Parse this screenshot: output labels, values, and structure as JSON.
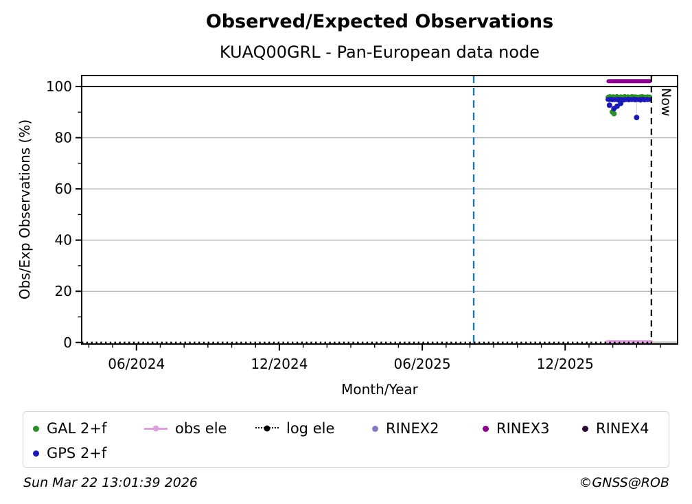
{
  "chart_data": {
    "type": "scatter",
    "title": "Observed/Expected Observations",
    "subtitle": "KUAQ00GRL - Pan-European data node",
    "xlabel": "Month/Year",
    "ylabel": "Obs/Exp Observations (%)",
    "x_unit_note": "x values are months since 2024-01-01, e.g. 5.0 = 01 Jun 2024",
    "xlim": [
      2.7,
      27.72
    ],
    "ylim": [
      -0.6,
      104.3
    ],
    "y_major_ticks": [
      0,
      20,
      40,
      60,
      80,
      100
    ],
    "y_minor_ticks": [
      10,
      30,
      50,
      70,
      90
    ],
    "x_major_ticks": [
      {
        "m": 5,
        "label": "06/2024"
      },
      {
        "m": 11,
        "label": "12/2024"
      },
      {
        "m": 17,
        "label": "06/2025"
      },
      {
        "m": 23,
        "label": "12/2025"
      }
    ],
    "x_minor_tick_months": [
      3,
      4,
      6,
      7,
      8,
      9,
      10,
      12,
      13,
      14,
      15,
      16,
      18,
      19,
      20,
      21,
      22,
      24,
      25,
      26,
      27
    ],
    "grid": {
      "y_values": [
        20,
        40,
        60,
        80
      ],
      "color": "#b5b5b5"
    },
    "reference_line_100": {
      "value": 100,
      "color": "#000000"
    },
    "event_line": {
      "m": 19.16,
      "color": "#1f77b4",
      "style": "dashed"
    },
    "now_line": {
      "m": 26.62,
      "label": "Now",
      "color": "#000000",
      "style": "dashed"
    },
    "series": [
      {
        "name": "GAL 2+f",
        "color": "#2e8b2e",
        "kind": "scatter",
        "band": {
          "m_start": 24.78,
          "m_step": 0.033,
          "pct": [
            95.8,
            96.1,
            95.6,
            96.3,
            95.9,
            95.5,
            96.0,
            96.2,
            95.7,
            96.1,
            95.4,
            95.9,
            96.3,
            95.8,
            95.5,
            96.0,
            95.7,
            96.2,
            95.9,
            95.6,
            96.1,
            95.8,
            96.3,
            95.5,
            96.0,
            95.7,
            96.2,
            95.4,
            95.9,
            96.1,
            95.6,
            96.3,
            95.8,
            96.0,
            95.5,
            96.2,
            95.7,
            96.1,
            95.9,
            95.4,
            96.0,
            95.8,
            96.2,
            95.6,
            96.3,
            95.9,
            95.5,
            96.1,
            95.7,
            96.0,
            95.8,
            96.2,
            95.6,
            95.9,
            96.1
          ]
        },
        "outliers": [
          [
            24.98,
            90.1
          ],
          [
            25.05,
            89.4
          ]
        ]
      },
      {
        "name": "GPS 2+f",
        "color": "#1b1bb3",
        "kind": "scatter",
        "band": {
          "m_start": 24.78,
          "m_step": 0.033,
          "pct": [
            94.9,
            95.1,
            94.7,
            95.0,
            94.8,
            95.2,
            94.6,
            95.0,
            94.9,
            94.7,
            95.1,
            94.8,
            95.0,
            94.6,
            95.2,
            94.9,
            94.7,
            95.1,
            94.8,
            95.0,
            94.5,
            94.9,
            95.1,
            94.7,
            95.0,
            94.8,
            95.2,
            94.6,
            94.9,
            95.1,
            94.8,
            94.7,
            95.0,
            94.9,
            95.2,
            94.6,
            95.1,
            94.8,
            95.0,
            94.7,
            94.9,
            95.1,
            94.5,
            95.0,
            94.8,
            95.2,
            94.9,
            94.6,
            95.0,
            94.8,
            95.1,
            94.7,
            94.9,
            95.0,
            94.8
          ]
        },
        "outliers": [
          [
            24.86,
            92.7
          ],
          [
            25.05,
            91.4
          ],
          [
            25.18,
            92.3
          ],
          [
            25.33,
            93.4
          ],
          [
            26.0,
            87.9
          ]
        ],
        "outlier_connector": {
          "m": 26.0,
          "from_pct": 94.7,
          "to_pct": 88.2,
          "color": "#d9d0ea"
        }
      },
      {
        "name": "obs ele",
        "color": "#dda0dd",
        "kind": "thick-line",
        "pct": 0,
        "m_from": 24.78,
        "m_to": 26.6,
        "width": 7
      },
      {
        "name": "log ele",
        "color": "#000000",
        "kind": "dotted-line",
        "pct": 0,
        "m_from": 2.7,
        "m_to": 26.62,
        "after_now": {
          "m_from": 26.62,
          "m_to": 27.72,
          "color": "#c9c9c9",
          "width": 3
        }
      },
      {
        "name": "RINEX2",
        "color": "#8878c0",
        "kind": "scatter",
        "points": []
      },
      {
        "name": "RINEX3",
        "color": "#8b008b",
        "kind": "thick-line",
        "pct": 102.1,
        "m_from": 24.82,
        "m_to": 26.55,
        "width": 6
      },
      {
        "name": "RINEX4",
        "color": "#2d0a35",
        "kind": "scatter",
        "points": []
      }
    ],
    "legend": {
      "rows": [
        [
          {
            "label": "GAL 2+f",
            "color": "#2e8b2e",
            "marker": "dot"
          },
          {
            "label": "obs ele",
            "color": "#dda0dd",
            "marker": "line-dot"
          },
          {
            "label": "log ele",
            "color": "#000000",
            "marker": "dotted-line-dot"
          },
          {
            "label": "RINEX2",
            "color": "#8878c0",
            "marker": "dot"
          },
          {
            "label": "RINEX3",
            "color": "#8b008b",
            "marker": "dot"
          },
          {
            "label": "RINEX4",
            "color": "#2d0a35",
            "marker": "dot"
          }
        ],
        [
          {
            "label": "GPS 2+f",
            "color": "#1b1bb3",
            "marker": "dot"
          }
        ]
      ]
    }
  },
  "footer": {
    "timestamp": "Sun Mar 22 13:01:39 2026",
    "credit": "©GNSS@ROB"
  }
}
